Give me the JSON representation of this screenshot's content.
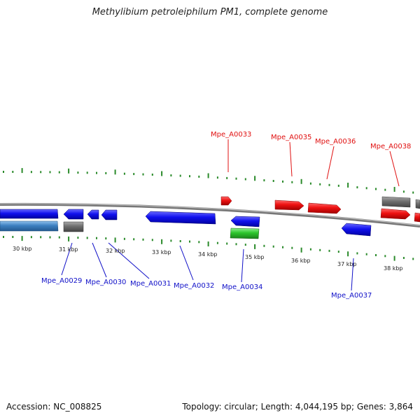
{
  "title": "Methylibium petroleiphilum PM1, complete genome",
  "footer": {
    "accession": "Accession: NC_008825",
    "summary": "Topology: circular; Length: 4,044,195 bp; Genes: 3,864"
  },
  "colors": {
    "forward_gene": "#e81010",
    "reverse_gene": "#1010e8",
    "rna_gene": "#2cc52c",
    "pseudo_gene": "#6e6e6e",
    "other_feature": "#3d80c0",
    "forward_label": "#e01010",
    "reverse_label": "#1010c8",
    "tick": "#2a8a2a",
    "backbone": "#888888"
  },
  "scale_labels": [
    "30 kbp",
    "31 kbp",
    "32 kbp",
    "33 kbp",
    "34 kbp",
    "35 kbp",
    "36 kbp",
    "37 kbp",
    "38 kbp"
  ],
  "genes_forward": [
    "Mpe_A0033",
    "Mpe_A0035",
    "Mpe_A0036",
    "Mpe_A0038"
  ],
  "genes_reverse": [
    "Mpe_A0029",
    "Mpe_A0030",
    "Mpe_A0031",
    "Mpe_A0032",
    "Mpe_A0034",
    "Mpe_A0037"
  ]
}
